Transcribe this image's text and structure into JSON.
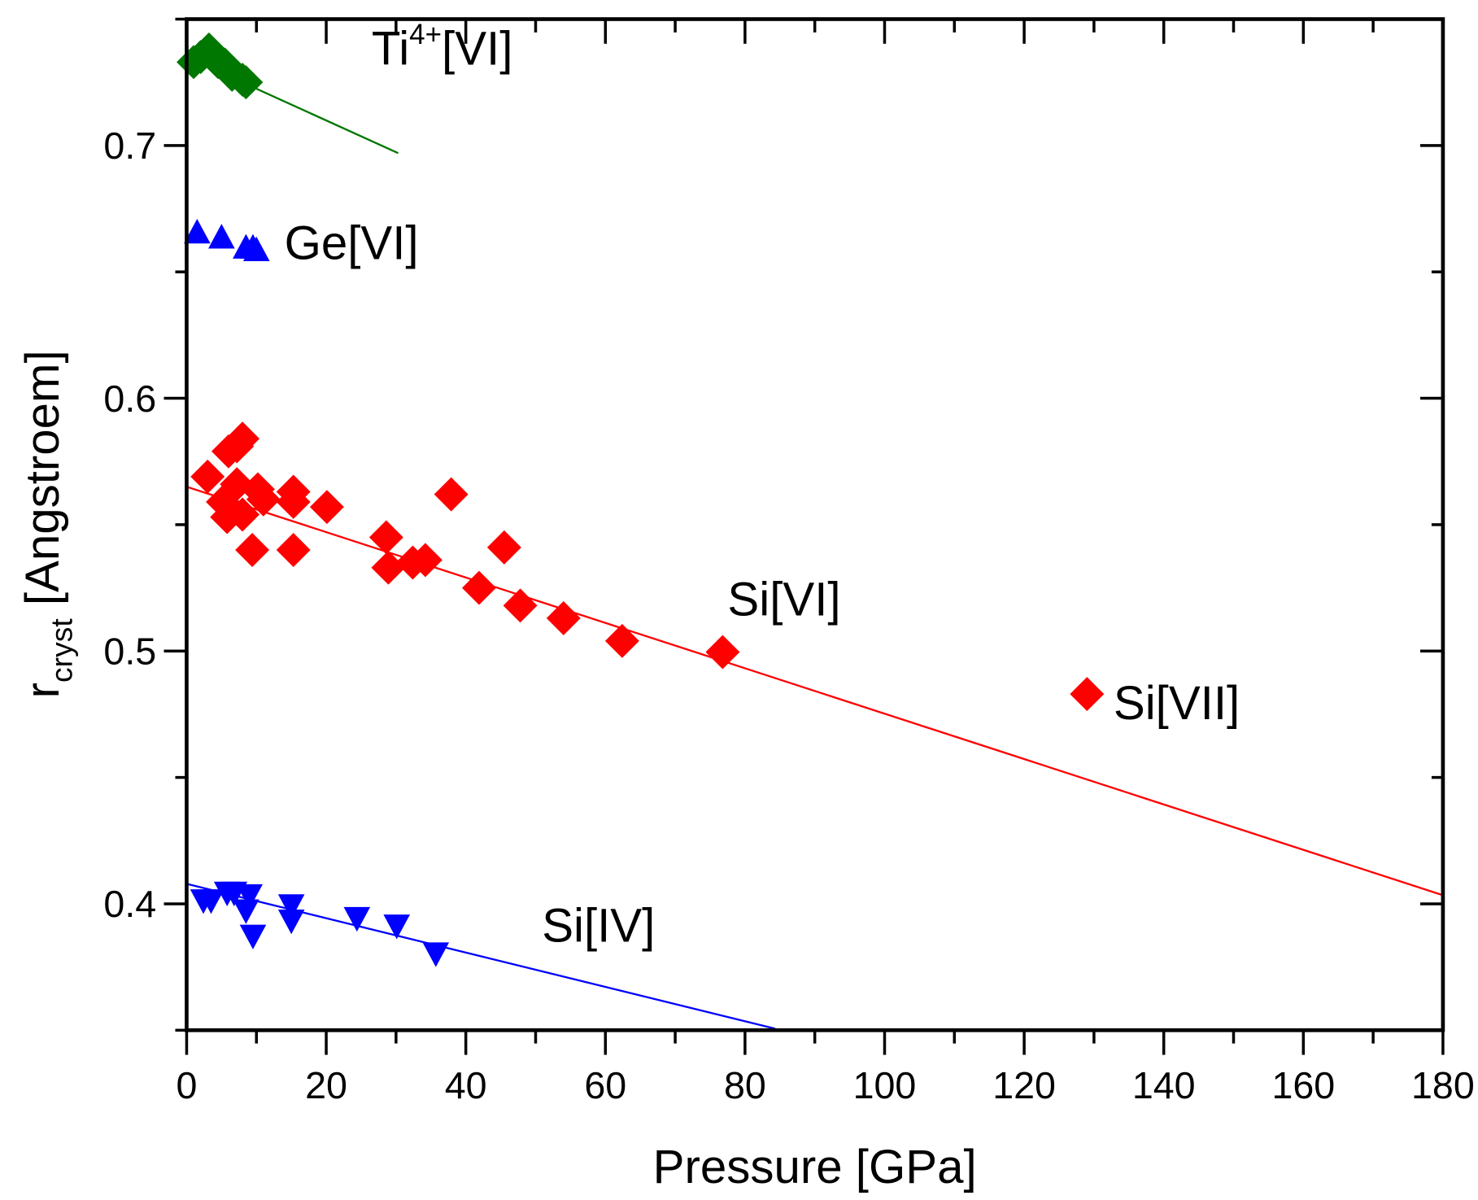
{
  "chart_data": {
    "type": "scatter",
    "title": "",
    "xlabel": "Pressure [GPa]",
    "ylabel_main": "r",
    "ylabel_sub": "cryst",
    "ylabel_rest": " [Angstroem]",
    "xlim": [
      0,
      180
    ],
    "ylim": [
      0.35,
      0.75
    ],
    "xticks": [
      0,
      20,
      40,
      60,
      80,
      100,
      120,
      140,
      160,
      180
    ],
    "xtick_labels": [
      "0",
      "20",
      "40",
      "60",
      "80",
      "100",
      "120",
      "140",
      "160",
      "180"
    ],
    "xminor": [
      10,
      30,
      50,
      70,
      90,
      110,
      130,
      150,
      170
    ],
    "yticks": [
      0.4,
      0.5,
      0.6,
      0.7
    ],
    "ytick_labels": [
      "0.4",
      "0.5",
      "0.6",
      "0.7"
    ],
    "yminor": [
      0.45,
      0.55,
      0.65
    ],
    "grid": false,
    "series": [
      {
        "name": "Ti4+[VI]",
        "label_main": "Ti",
        "label_sup": "4+",
        "label_rest": "[VI]",
        "marker": "diamond",
        "color": "#007700",
        "points": [
          [
            1,
            0.733
          ],
          [
            2,
            0.735
          ],
          [
            3.2,
            0.738
          ],
          [
            4.5,
            0.733
          ],
          [
            5.5,
            0.732
          ],
          [
            6.5,
            0.728
          ],
          [
            8,
            0.726
          ],
          [
            8.5,
            0.725
          ]
        ],
        "fit": {
          "x": [
            0,
            30.3
          ],
          "y": [
            0.735,
            0.697
          ]
        },
        "label_at": [
          26.5,
          0.732
        ]
      },
      {
        "name": "Ge[VI]",
        "label_main": "Ge[VI]",
        "marker": "triangle-up",
        "color": "#0000ff",
        "points": [
          [
            1.5,
            0.665
          ],
          [
            5,
            0.663
          ],
          [
            8.5,
            0.659
          ],
          [
            9.5,
            0.659
          ],
          [
            10,
            0.658
          ]
        ],
        "label_at": [
          14,
          0.655
        ]
      },
      {
        "name": "Si[VI]",
        "label_main": "Si[VI]",
        "marker": "diamond",
        "color": "#ff0000",
        "points": [
          [
            3,
            0.569
          ],
          [
            6,
            0.579
          ],
          [
            7.2,
            0.581
          ],
          [
            8,
            0.584
          ],
          [
            5.2,
            0.559
          ],
          [
            5.8,
            0.553
          ],
          [
            7.2,
            0.566
          ],
          [
            8,
            0.554
          ],
          [
            9.4,
            0.54
          ],
          [
            10.2,
            0.564
          ],
          [
            11,
            0.56
          ],
          [
            15.3,
            0.563
          ],
          [
            15.3,
            0.559
          ],
          [
            15.3,
            0.54
          ],
          [
            20.1,
            0.557
          ],
          [
            28.6,
            0.545
          ],
          [
            28.9,
            0.533
          ],
          [
            32.4,
            0.535
          ],
          [
            34.2,
            0.536
          ],
          [
            37.9,
            0.562
          ],
          [
            41.9,
            0.525
          ],
          [
            45.5,
            0.541
          ],
          [
            47.8,
            0.518
          ],
          [
            54,
            0.513
          ],
          [
            62.4,
            0.504
          ],
          [
            76.8,
            0.4996
          ]
        ],
        "fit": {
          "x": [
            0,
            180
          ],
          "y": [
            0.565,
            0.4034
          ]
        },
        "label_at": [
          77.5,
          0.514
        ]
      },
      {
        "name": "Si[VII]",
        "label_main": "Si[VII]",
        "marker": "diamond",
        "color": "#ff0000",
        "points": [
          [
            129,
            0.483
          ]
        ],
        "label_at": [
          132.8,
          0.473
        ]
      },
      {
        "name": "Si[IV]",
        "label_main": "Si[IV]",
        "marker": "triangle-down",
        "color": "#0000ff",
        "points": [
          [
            2.4,
            0.402
          ],
          [
            3.5,
            0.402
          ],
          [
            5.8,
            0.405
          ],
          [
            6.8,
            0.405
          ],
          [
            9,
            0.404
          ],
          [
            8.5,
            0.398
          ],
          [
            9.5,
            0.388
          ],
          [
            15,
            0.4
          ],
          [
            15,
            0.394
          ],
          [
            24.4,
            0.395
          ],
          [
            30.1,
            0.392
          ],
          [
            35.7,
            0.381
          ]
        ],
        "fit": {
          "x": [
            0,
            84.3
          ],
          "y": [
            0.4079,
            0.3506
          ]
        },
        "label_at": [
          50.9,
          0.385
        ]
      }
    ]
  }
}
